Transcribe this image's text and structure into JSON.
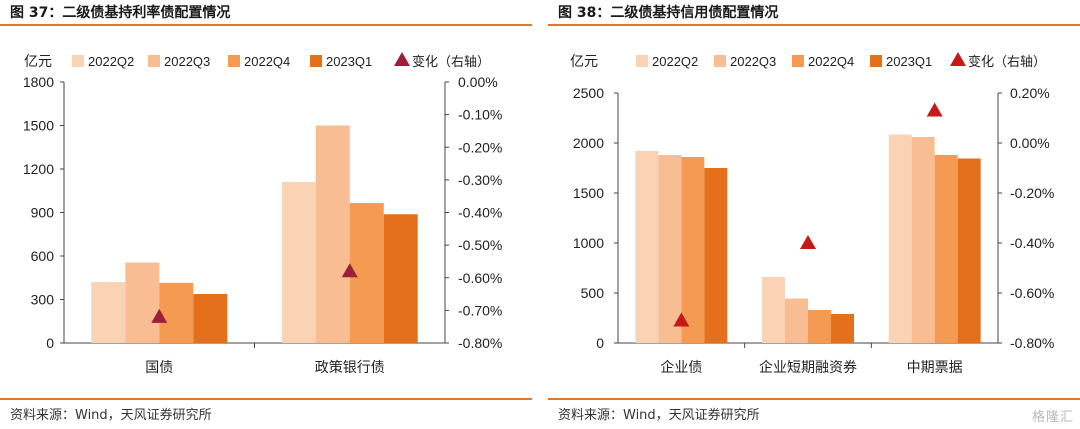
{
  "charts": [
    {
      "figure_title": "图 37：二级债基持利率债配置情况",
      "source": "资料来源：Wind，天风证券研究所",
      "chart_data": {
        "type": "bar",
        "ylabel": "亿元",
        "categories": [
          "国债",
          "政策银行债"
        ],
        "series": [
          {
            "name": "2022Q2",
            "color": "#fad3b5",
            "values": [
              420,
              1110
            ]
          },
          {
            "name": "2022Q3",
            "color": "#f8bd92",
            "values": [
              555,
              1500
            ]
          },
          {
            "name": "2022Q4",
            "color": "#f49a52",
            "values": [
              415,
              965
            ]
          },
          {
            "name": "2023Q1",
            "color": "#e5701c",
            "values": [
              338,
              888
            ]
          }
        ],
        "marker_series": {
          "name": "变化（右轴）",
          "color": "#9c1f3c",
          "values": [
            -0.0072,
            -0.0058
          ]
        },
        "left_axis": {
          "min": 0,
          "max": 1800,
          "ticks": [
            "0",
            "300",
            "600",
            "900",
            "1200",
            "1500",
            "1800"
          ]
        },
        "right_axis": {
          "min": -0.008,
          "max": 0.0,
          "ticks": [
            "0.00%",
            "-0.10%",
            "-0.20%",
            "-0.30%",
            "-0.40%",
            "-0.50%",
            "-0.60%",
            "-0.70%",
            "-0.80%"
          ]
        },
        "legend_position": "top"
      }
    },
    {
      "figure_title": "图 38：二级债基持信用债配置情况",
      "source": "资料来源：Wind，天风证券研究所",
      "chart_data": {
        "type": "bar",
        "ylabel": "亿元",
        "categories": [
          "企业债",
          "企业短期融资券",
          "中期票据"
        ],
        "series": [
          {
            "name": "2022Q2",
            "color": "#fad3b5",
            "values": [
              1920,
              660,
              2085
            ]
          },
          {
            "name": "2022Q3",
            "color": "#f8bd92",
            "values": [
              1880,
              445,
              2060
            ]
          },
          {
            "name": "2022Q4",
            "color": "#f49a52",
            "values": [
              1860,
              330,
              1880
            ]
          },
          {
            "name": "2023Q1",
            "color": "#e5701c",
            "values": [
              1750,
              290,
              1845
            ]
          }
        ],
        "marker_series": {
          "name": "变化（右轴）",
          "color": "#c41a1a",
          "values": [
            -0.0071,
            -0.004,
            0.0013
          ]
        },
        "left_axis": {
          "min": 0,
          "max": 2500,
          "ticks": [
            "0",
            "500",
            "1000",
            "1500",
            "2000",
            "2500"
          ]
        },
        "right_axis": {
          "min": -0.008,
          "max": 0.002,
          "ticks": [
            "0.20%",
            "0.00%",
            "-0.20%",
            "-0.40%",
            "-0.60%",
            "-0.80%"
          ]
        },
        "legend_position": "top"
      }
    }
  ],
  "watermark": "格隆汇"
}
